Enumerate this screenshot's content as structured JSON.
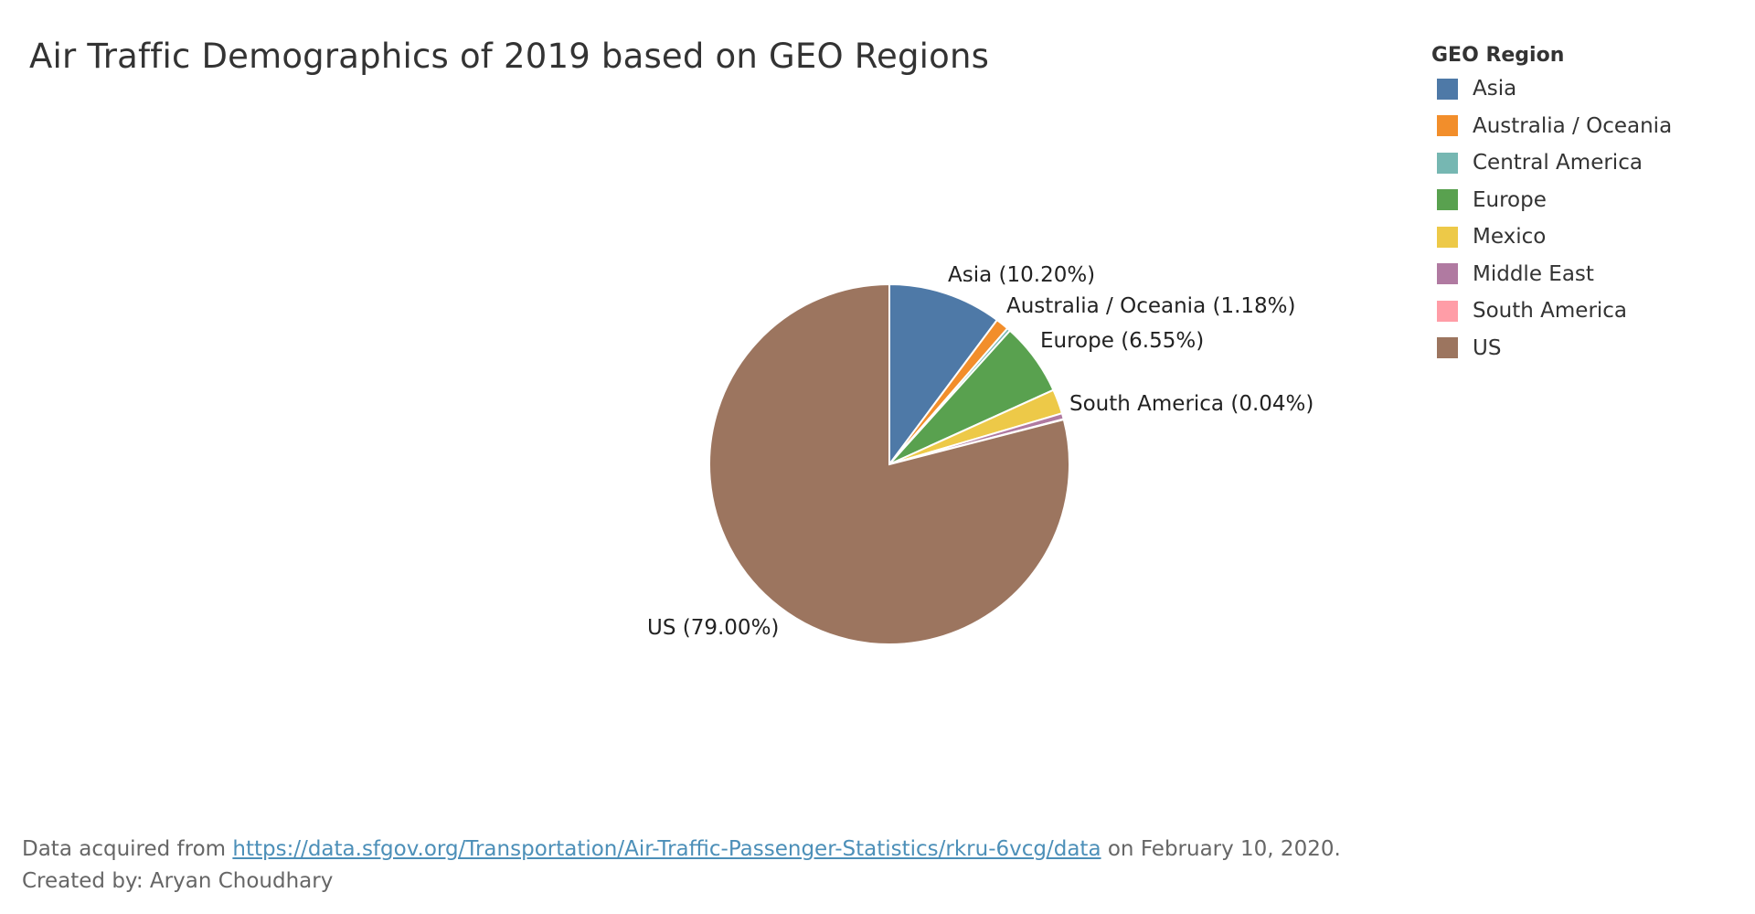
{
  "title": "Air Traffic Demographics of 2019 based on GEO Regions",
  "legend": {
    "title": "GEO Region",
    "items": [
      {
        "label": "Asia",
        "color": "#4e79a7"
      },
      {
        "label": "Australia / Oceania",
        "color": "#f28e2b"
      },
      {
        "label": "Central America",
        "color": "#76b7b2"
      },
      {
        "label": "Europe",
        "color": "#59a14f"
      },
      {
        "label": "Mexico",
        "color": "#edc948"
      },
      {
        "label": "Middle East",
        "color": "#b07aa1"
      },
      {
        "label": "South America",
        "color": "#ff9da7"
      },
      {
        "label": "US",
        "color": "#9c755f"
      }
    ]
  },
  "chart_data": {
    "type": "pie",
    "title": "Air Traffic Demographics of 2019 based on GEO Regions",
    "legend_title": "GEO Region",
    "legend_position": "top-right",
    "slices": [
      {
        "name": "Asia",
        "value": 10.2,
        "color": "#4e79a7",
        "label": "Asia (10.20%)"
      },
      {
        "name": "Australia / Oceania",
        "value": 1.18,
        "color": "#f28e2b",
        "label": "Australia / Oceania (1.18%)"
      },
      {
        "name": "Central America",
        "value": 0.3,
        "color": "#76b7b2",
        "label": ""
      },
      {
        "name": "Europe",
        "value": 6.55,
        "color": "#59a14f",
        "label": "Europe (6.55%)"
      },
      {
        "name": "Mexico",
        "value": 2.2,
        "color": "#edc948",
        "label": ""
      },
      {
        "name": "Middle East",
        "value": 0.53,
        "color": "#b07aa1",
        "label": ""
      },
      {
        "name": "South America",
        "value": 0.04,
        "color": "#ff9da7",
        "label": "South America (0.04%)"
      },
      {
        "name": "US",
        "value": 79.0,
        "color": "#9c755f",
        "label": "US (79.00%)"
      }
    ]
  },
  "footer": {
    "source_prefix": "Data acquired from ",
    "source_link": "https://data.sfgov.org/Transportation/Air-Traffic-Passenger-Statistics/rkru-6vcg/data",
    "source_suffix": " on February 10, 2020.",
    "credit": "Created by: Aryan Choudhary"
  }
}
